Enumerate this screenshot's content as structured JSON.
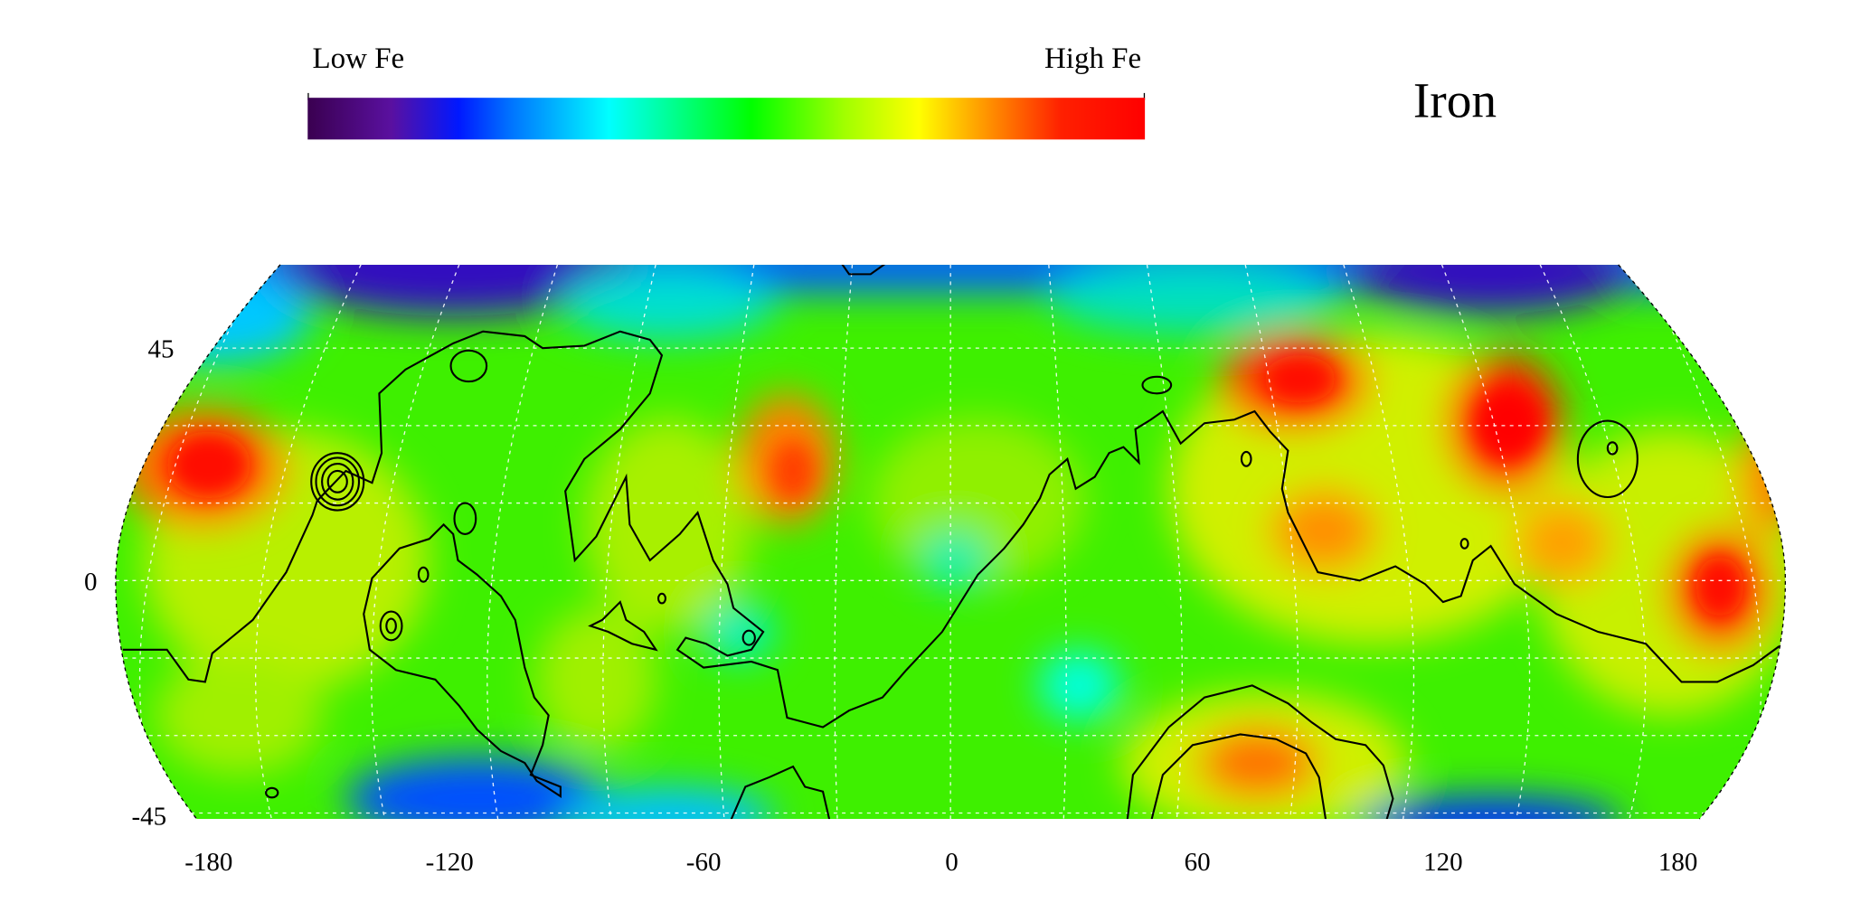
{
  "title": "Iron",
  "colorbar": {
    "low_label": "Low Fe",
    "high_label": "High Fe",
    "stops": [
      "#3a0050",
      "#5a10a0",
      "#0018ff",
      "#0070ff",
      "#00ffff",
      "#00ff99",
      "#00ff00",
      "#a0ff00",
      "#ffff00",
      "#ff8800",
      "#ff2000",
      "#ff0000"
    ]
  },
  "map": {
    "y_ticks": [
      "45",
      "0",
      "-45"
    ],
    "x_ticks": [
      "-180",
      "-120",
      "-60",
      "0",
      "60",
      "120",
      "180"
    ],
    "gridlines": "dashed white",
    "contour_color": "#000000"
  }
}
